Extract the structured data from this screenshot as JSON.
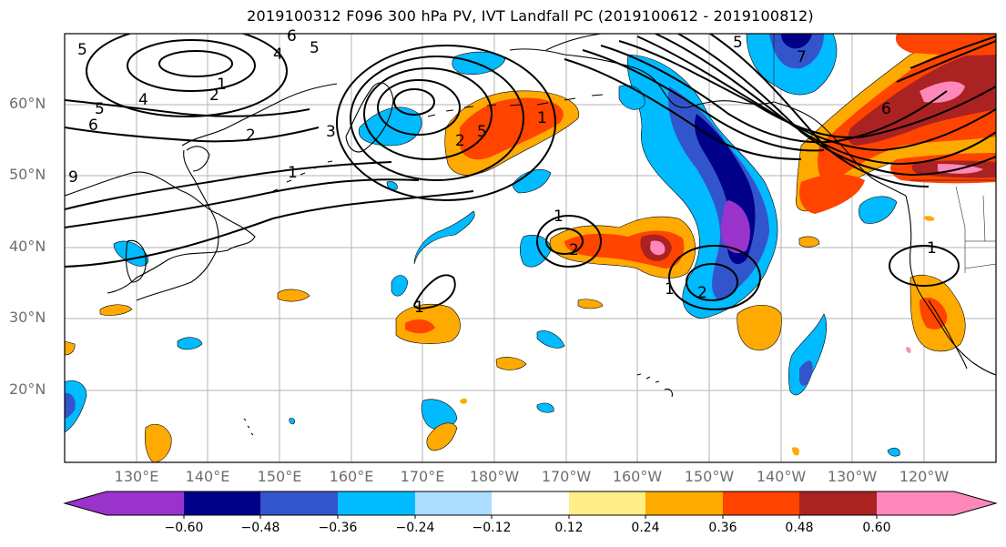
{
  "title": "2019100312 F096 300 hPa PV, IVT Landfall PC (2019100612 - 2019100812)",
  "map": {
    "projection": "plate-carree",
    "extent": {
      "lon_min": 120,
      "lon_max": 250,
      "lat_min": 10,
      "lat_max": 70
    },
    "lat_labels": [
      "60°N",
      "50°N",
      "40°N",
      "30°N",
      "20°N"
    ],
    "lon_labels": [
      "130°E",
      "140°E",
      "150°E",
      "160°E",
      "170°E",
      "180°W",
      "170°W",
      "160°W",
      "150°W",
      "140°W",
      "130°W",
      "120°W"
    ],
    "gridlines": true,
    "contour_variable": "300 hPa PV",
    "contour_labels": [
      "5",
      "6",
      "5",
      "4",
      "5",
      "1",
      "2",
      "4",
      "5",
      "6",
      "2",
      "3",
      "1",
      "9",
      "1",
      "1",
      "2",
      "1",
      "2",
      "1",
      "2",
      "5",
      "7",
      "1",
      "6"
    ],
    "colors": {
      "n060": "#9933cc",
      "n048": "#000088",
      "n036": "#3355cc",
      "n024": "#00bbff",
      "n012": "#aaddff",
      "p012": "#ffee88",
      "p024": "#ffaa00",
      "p036": "#ff4400",
      "p048": "#aa2222",
      "p060": "#ff88bb"
    }
  },
  "colorbar": {
    "levels": [
      "−0.60",
      "−0.48",
      "−0.36",
      "−0.24",
      "−0.12",
      "0.12",
      "0.24",
      "0.36",
      "0.48",
      "0.60"
    ],
    "extend": "both"
  }
}
